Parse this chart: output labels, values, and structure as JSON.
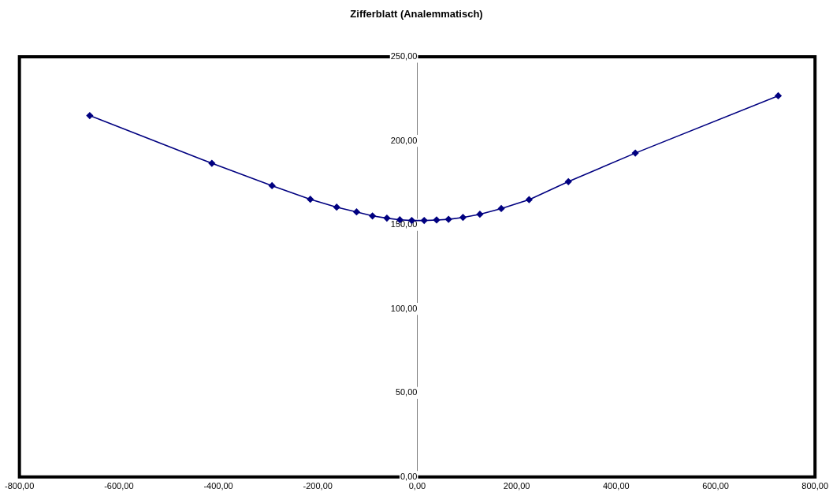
{
  "chart_data": {
    "type": "line",
    "title": "Zifferblatt (Analemmatisch)",
    "x": [
      -658.6,
      -413,
      -292,
      -215,
      -162,
      -122,
      -90,
      -61,
      -35,
      -11,
      14,
      39,
      63,
      92,
      126,
      169,
      225,
      304,
      438.6,
      726
    ],
    "series": [
      {
        "color": "#000080",
        "values": [
          215,
          186.6,
          173.3,
          165.2,
          160.5,
          157.7,
          155.3,
          154,
          153,
          152.6,
          152.6,
          152.9,
          153.3,
          154.4,
          156.3,
          159.7,
          165,
          175.7,
          192.7,
          226.8
        ]
      }
    ],
    "xlim": [
      -800,
      800
    ],
    "xticks": [
      {
        "value": -800,
        "label": "-800,00"
      },
      {
        "value": -600,
        "label": "-600,00"
      },
      {
        "value": -400,
        "label": "-400,00"
      },
      {
        "value": -200,
        "label": "-200,00"
      },
      {
        "value": 0,
        "label": "0,00"
      },
      {
        "value": 200,
        "label": "200,00"
      },
      {
        "value": 400,
        "label": "400,00"
      },
      {
        "value": 600,
        "label": "600,00"
      },
      {
        "value": 800,
        "label": "800,00"
      }
    ],
    "ylim": [
      0,
      250
    ],
    "yticks": [
      {
        "value": 0,
        "label": "0,00"
      },
      {
        "value": 50,
        "label": "50,00"
      },
      {
        "value": 100,
        "label": "100,00"
      },
      {
        "value": 150,
        "label": "150,00"
      },
      {
        "value": 200,
        "label": "200,00"
      },
      {
        "value": 250,
        "label": "250,00"
      }
    ],
    "grid": false,
    "legend": false,
    "marker": "diamond",
    "line_style": "solid"
  }
}
